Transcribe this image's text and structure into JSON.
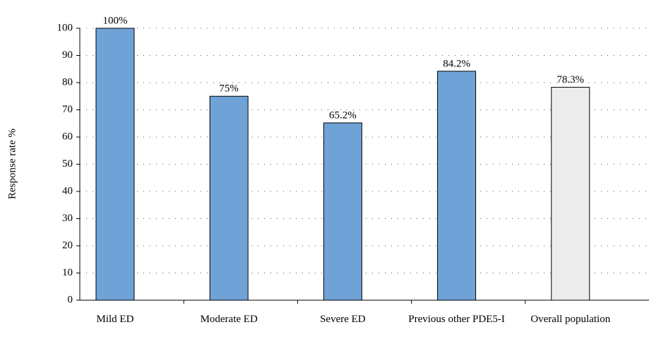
{
  "chart_data": {
    "type": "bar",
    "y_label": "Response rate %",
    "categories": [
      "Mild ED",
      "Moderate ED",
      "Severe ED",
      "Previous other PDE5-I",
      "Overall population"
    ],
    "values": [
      100,
      75,
      65.2,
      84.2,
      78.3
    ],
    "value_labels": [
      "100%",
      "75%",
      "65.2%",
      "84.2%",
      "78.3%"
    ],
    "colors": [
      "#6fa3d8",
      "#6fa3d8",
      "#6fa3d8",
      "#6fa3d8",
      "#ececec"
    ],
    "ylim": [
      0,
      100
    ],
    "yticks": [
      0,
      10,
      20,
      30,
      40,
      50,
      60,
      70,
      80,
      90,
      100
    ],
    "grid": true
  }
}
